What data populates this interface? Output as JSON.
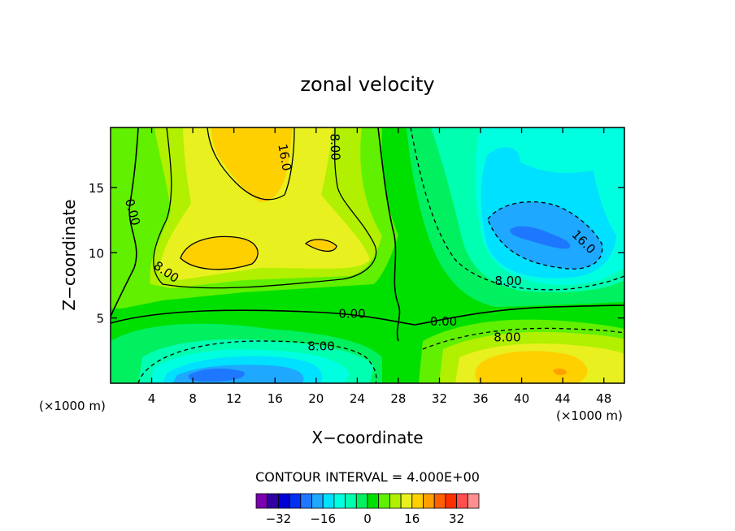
{
  "chart_data": {
    "type": "contour",
    "title": "zonal velocity",
    "xlabel": "X−coordinate",
    "ylabel": "Z−coordinate",
    "x_units": "(×1000 m)",
    "x_units_right": "(×1000 m)",
    "xlim": [
      0,
      50
    ],
    "ylim": [
      0,
      19.6
    ],
    "x_ticks": [
      4,
      8,
      12,
      16,
      20,
      24,
      28,
      32,
      36,
      40,
      44,
      48
    ],
    "x_tick_labels": [
      "4",
      "8",
      "12",
      "16",
      "20",
      "24",
      "28",
      "32",
      "36",
      "40",
      "44",
      "48"
    ],
    "y_ticks": [
      5,
      10,
      15
    ],
    "y_tick_labels": [
      "5",
      "10",
      "15"
    ],
    "contour_interval_label": "CONTOUR INTERVAL = 4.000E+00",
    "contour_interval": 4,
    "colorbar_levels": [
      -40,
      -36,
      -32,
      -28,
      -24,
      -20,
      -16,
      -12,
      -8,
      -4,
      0,
      4,
      8,
      12,
      16,
      20,
      24,
      28,
      32,
      36,
      40
    ],
    "colorbar_tick_labels": [
      "−32",
      "−16",
      "0",
      "16",
      "32"
    ],
    "colorbar_tick_values": [
      -32,
      -16,
      0,
      16,
      32
    ],
    "colorbar_colors": [
      "#7a00b0",
      "#3000a0",
      "#0000d8",
      "#0030f0",
      "#1e78ff",
      "#1ea8ff",
      "#00e0ff",
      "#00ffe0",
      "#00ffb0",
      "#00f060",
      "#00e000",
      "#60f000",
      "#b0f000",
      "#e8f020",
      "#ffd000",
      "#ffa000",
      "#ff6000",
      "#ff3000",
      "#ff5050",
      "#ff9090"
    ],
    "contour_labels": [
      {
        "text": "16.0",
        "x": 16.9,
        "y": 17.3,
        "angle": 80
      },
      {
        "text": "8.00",
        "x": 21.8,
        "y": 18.1,
        "angle": 88
      },
      {
        "text": "0.00",
        "x": 2.1,
        "y": 13.1,
        "angle": 75
      },
      {
        "text": "8.00",
        "x": 5.4,
        "y": 8.5,
        "angle": 35
      },
      {
        "text": "16.0",
        "x": 46.0,
        "y": 10.8,
        "angle": 45
      },
      {
        "text": "8.00",
        "x": 38.7,
        "y": 7.8,
        "angle": 0
      },
      {
        "text": "0.00",
        "x": 23.5,
        "y": 5.3,
        "angle": 0
      },
      {
        "text": "0.00",
        "x": 32.4,
        "y": 4.7,
        "angle": 0
      },
      {
        "text": "8.00",
        "x": 38.6,
        "y": 3.5,
        "angle": 0
      },
      {
        "text": "8.00",
        "x": 20.5,
        "y": 2.8,
        "angle": 0
      }
    ],
    "features": [
      {
        "name": "upper-left positive jet",
        "sign": "positive",
        "peak": 20,
        "x": 14.5,
        "y": 17.5
      },
      {
        "name": "mid-left positive jet",
        "sign": "positive",
        "peak": 20,
        "x": 10.5,
        "y": 10.2
      },
      {
        "name": "small positive core",
        "sign": "positive",
        "peak": 20,
        "x": 20.5,
        "y": 10.6
      },
      {
        "name": "upper-right negative core",
        "sign": "negative",
        "peak": -24,
        "x": 43.5,
        "y": 11.5
      },
      {
        "name": "lower-left negative core",
        "sign": "negative",
        "peak": -24,
        "x": 13.5,
        "y": 1.2
      },
      {
        "name": "lower-right positive core",
        "sign": "positive",
        "peak": 20,
        "x": 41,
        "y": 1.5
      }
    ]
  }
}
